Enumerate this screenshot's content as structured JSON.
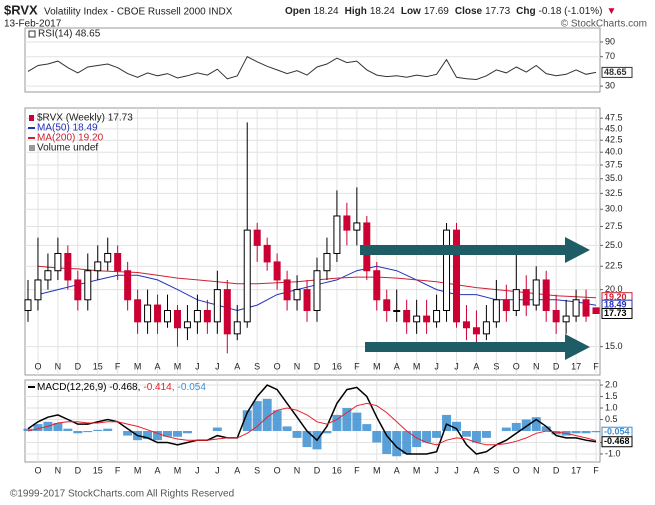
{
  "header": {
    "symbol": "$RVX",
    "name": "Volatility Index - CBOE Russell 2000 INDX",
    "date": "13-Feb-2017",
    "quote": [
      {
        "label": "Open",
        "value": "18.24"
      },
      {
        "label": "High",
        "value": "18.24"
      },
      {
        "label": "Low",
        "value": "17.69"
      },
      {
        "label": "Close",
        "value": "17.73"
      },
      {
        "label": "Chg",
        "value": "-0.18 (-1.01%)"
      }
    ],
    "change_arrow": "▼",
    "source": "© StockCharts.com"
  },
  "footer": "©1999-2017 StockCharts.com All Rights Reserved",
  "chart_data": [
    {
      "type": "line",
      "title": "RSI(14) 48.65",
      "x": [
        -0.5,
        0,
        0.5,
        1,
        1.5,
        2,
        2.5,
        3,
        3.5,
        4,
        4.5,
        5,
        5.5,
        6,
        6.5,
        7,
        7.5,
        8,
        8.5,
        9,
        9.5,
        10,
        10.5,
        11,
        11.5,
        12,
        12.5,
        13,
        13.5,
        14,
        14.5,
        15,
        15.5,
        16,
        16.5,
        17,
        17.5,
        18,
        18.5,
        19,
        19.5,
        20,
        20.5,
        21,
        21.5,
        22,
        22.5,
        23,
        23.5,
        24,
        24.5,
        25,
        25.5,
        26,
        26.5,
        27,
        27.5,
        28
      ],
      "series": [
        {
          "color": "#333333",
          "values": [
            50,
            58,
            60,
            64,
            55,
            48,
            56,
            58,
            60,
            55,
            47,
            42,
            48,
            44,
            47,
            41,
            44,
            48,
            45,
            53,
            40,
            44,
            70,
            63,
            57,
            52,
            47,
            51,
            45,
            56,
            60,
            68,
            62,
            64,
            52,
            45,
            43,
            44,
            42,
            45,
            43,
            46,
            66,
            42,
            40,
            39,
            44,
            52,
            48,
            56,
            49,
            58,
            47,
            44,
            46,
            52,
            46,
            48.65
          ]
        }
      ],
      "xlim": [
        -0.65,
        28.2
      ],
      "ylim": [
        22,
        109
      ],
      "yticks": [
        30,
        70,
        90
      ],
      "grid": true,
      "tags": [
        {
          "value": 48.65,
          "label": "48.65",
          "color": "#333333"
        }
      ]
    },
    {
      "type": "candlestick",
      "name": "$RVX (Weekly) 17.73",
      "log_scale": true,
      "grid": true,
      "up_color": "#000000",
      "down_color": "#cc0033",
      "x": [
        -0.5,
        0,
        0.5,
        1,
        1.5,
        2,
        2.5,
        3,
        3.5,
        4,
        4.5,
        5,
        5.5,
        6,
        6.5,
        7,
        7.5,
        8,
        8.5,
        9,
        9.5,
        10,
        10.5,
        11,
        11.5,
        12,
        12.5,
        13,
        13.5,
        14,
        14.5,
        15,
        15.5,
        16,
        16.5,
        17,
        17.5,
        18,
        18.5,
        19,
        19.5,
        20,
        20.5,
        21,
        21.5,
        22,
        22.5,
        23,
        23.5,
        24,
        24.5,
        25,
        25.5,
        26,
        26.5,
        27,
        27.5,
        28
      ],
      "open": [
        18,
        19,
        21,
        22,
        24,
        21,
        19,
        22,
        23,
        24,
        22,
        19,
        17,
        18.5,
        17,
        18,
        16.5,
        17,
        18,
        17,
        20,
        16,
        17,
        27,
        25,
        23,
        21,
        19,
        20,
        18,
        22,
        24,
        29,
        27,
        28,
        22,
        19,
        18,
        18,
        17,
        17.5,
        17,
        18,
        27,
        17,
        16.5,
        16,
        17,
        19,
        18,
        20,
        18.5,
        21,
        18,
        17,
        17.5,
        19,
        18.24
      ],
      "high": [
        21,
        26,
        24,
        26,
        25,
        22,
        24,
        25,
        26,
        25,
        23,
        20,
        20,
        19.5,
        19.5,
        18.5,
        18.5,
        19.5,
        19,
        22,
        21,
        18.5,
        46.5,
        28,
        26,
        24,
        22,
        21.5,
        21,
        23.5,
        26,
        33,
        31,
        33.5,
        29,
        23,
        20,
        20,
        19,
        19,
        19,
        19.5,
        28,
        28,
        18.5,
        18,
        18.5,
        21,
        20.5,
        25,
        21.5,
        22.5,
        22,
        19.5,
        19,
        20,
        20,
        18.24
      ],
      "low": [
        17,
        18,
        20,
        21,
        20,
        18,
        18,
        21,
        22,
        21,
        18,
        16,
        16,
        16,
        16.5,
        15,
        15.5,
        16,
        16,
        16,
        14.5,
        15.5,
        16.5,
        23,
        22,
        20,
        18,
        18,
        17,
        17,
        21,
        23,
        25,
        25,
        21,
        18,
        17,
        17,
        16,
        16,
        16,
        16.5,
        17,
        16.5,
        15.5,
        15,
        15.5,
        16.5,
        17,
        17.5,
        17.5,
        18,
        17,
        16,
        16,
        17,
        17,
        17.69
      ],
      "close": [
        19,
        21,
        22,
        24,
        21,
        19,
        22,
        23,
        24,
        22,
        19,
        17,
        18.5,
        17,
        18,
        16.5,
        17,
        18,
        17,
        20,
        16,
        17,
        27,
        25,
        23,
        21,
        19,
        20,
        18,
        22,
        24,
        29,
        27,
        28,
        22,
        19,
        18,
        18,
        17,
        17.5,
        17,
        18,
        27,
        17,
        16.5,
        16,
        17,
        19,
        18,
        20,
        18.5,
        21,
        18,
        17,
        17.5,
        19,
        17.5,
        17.73
      ],
      "overlays": [
        {
          "name": "MA(50) 18.49",
          "color": "#2233bb",
          "x": [
            0,
            1,
            2,
            3,
            4,
            5,
            6,
            7,
            8,
            9,
            10,
            11,
            12,
            13,
            14,
            15,
            16,
            17,
            18,
            19,
            20,
            21,
            22,
            23,
            24,
            25,
            26,
            27,
            28
          ],
          "values": [
            19.5,
            20,
            20.5,
            21,
            21.5,
            21.5,
            21,
            20,
            19,
            18.5,
            18,
            18.5,
            19.5,
            20,
            20.5,
            21,
            22,
            22.5,
            22,
            21,
            20,
            19.5,
            19.5,
            19,
            19,
            19,
            19,
            18.8,
            18.49
          ]
        },
        {
          "name": "MA(200) 19.20",
          "color": "#cc2233",
          "x": [
            0,
            1,
            2,
            3,
            4,
            5,
            6,
            7,
            8,
            9,
            10,
            11,
            12,
            13,
            14,
            15,
            16,
            17,
            18,
            19,
            20,
            21,
            22,
            23,
            24,
            25,
            26,
            27,
            28
          ],
          "values": [
            22.5,
            22.3,
            22.2,
            22,
            21.9,
            21.8,
            21.5,
            21.2,
            21,
            20.8,
            20.6,
            20.6,
            20.7,
            20.8,
            21,
            21.2,
            21.3,
            21.3,
            21.2,
            21,
            20.8,
            20.5,
            20.2,
            20,
            19.8,
            19.6,
            19.4,
            19.3,
            19.2
          ]
        }
      ],
      "legend_extra": [
        "Volume undef"
      ],
      "xlim": [
        -0.65,
        28.2
      ],
      "ylim": [
        13,
        50
      ],
      "yticks": [
        47.5,
        {
          "value": 45,
          "label": "45.0"
        },
        42.5,
        {
          "value": 40,
          "label": "40.0"
        },
        37.5,
        {
          "value": 35,
          "label": "35.0"
        },
        32.5,
        {
          "value": 30,
          "label": "30.0"
        },
        27.5,
        {
          "value": 25,
          "label": "25.0"
        },
        22.5,
        {
          "value": 20,
          "label": "20.0"
        },
        {
          "value": 15,
          "label": "15.0"
        }
      ],
      "xticks": [
        {
          "value": 0,
          "label": "O"
        },
        {
          "value": 1,
          "label": "N"
        },
        {
          "value": 2,
          "label": "D"
        },
        {
          "value": 3,
          "label": "15"
        },
        {
          "value": 4,
          "label": "F"
        },
        {
          "value": 5,
          "label": "M"
        },
        {
          "value": 6,
          "label": "A"
        },
        {
          "value": 7,
          "label": "M"
        },
        {
          "value": 8,
          "label": "J"
        },
        {
          "value": 9,
          "label": "J"
        },
        {
          "value": 10,
          "label": "A"
        },
        {
          "value": 11,
          "label": "S"
        },
        {
          "value": 12,
          "label": "O"
        },
        {
          "value": 13,
          "label": "N"
        },
        {
          "value": 14,
          "label": "D"
        },
        {
          "value": 15,
          "label": "16"
        },
        {
          "value": 16,
          "label": "F"
        },
        {
          "value": 17,
          "label": "M"
        },
        {
          "value": 18,
          "label": "A"
        },
        {
          "value": 19,
          "label": "M"
        },
        {
          "value": 20,
          "label": "J"
        },
        {
          "value": 21,
          "label": "J"
        },
        {
          "value": 22,
          "label": "A"
        },
        {
          "value": 23,
          "label": "S"
        },
        {
          "value": 24,
          "label": "O"
        },
        {
          "value": 25,
          "label": "N"
        },
        {
          "value": 26,
          "label": "D"
        },
        {
          "value": 27,
          "label": "17"
        },
        {
          "value": 28,
          "label": "F"
        }
      ],
      "tags": [
        {
          "value": 19.2,
          "label": "19.20",
          "color": "#cc2233"
        },
        {
          "value": 18.49,
          "label": "18.49",
          "color": "#2233bb"
        },
        {
          "value": 17.73,
          "label": "17.73",
          "color": "#000000"
        }
      ]
    },
    {
      "type": "macd",
      "grid": true,
      "x": [
        -0.5,
        0,
        0.5,
        1,
        1.5,
        2,
        2.5,
        3,
        3.5,
        4,
        4.5,
        5,
        5.5,
        6,
        6.5,
        7,
        7.5,
        8,
        8.5,
        9,
        9.5,
        10,
        10.5,
        11,
        11.5,
        12,
        12.5,
        13,
        13.5,
        14,
        14.5,
        15,
        15.5,
        16,
        16.5,
        17,
        17.5,
        18,
        18.5,
        19,
        19.5,
        20,
        20.5,
        21,
        21.5,
        22,
        22.5,
        23,
        23.5,
        24,
        24.5,
        25,
        25.5,
        26,
        26.5,
        27,
        27.5,
        28
      ],
      "series": [
        {
          "name": "MACD(12,26,9) -0.468,",
          "color": "#000000",
          "style": "line",
          "values": [
            0.1,
            0.4,
            0.6,
            0.7,
            0.5,
            0.3,
            0.3,
            0.4,
            0.5,
            0.4,
            0.1,
            -0.2,
            -0.3,
            -0.5,
            -0.5,
            -0.6,
            -0.5,
            -0.4,
            -0.4,
            -0.2,
            -0.3,
            -0.3,
            0.8,
            1.5,
            2.0,
            1.8,
            1.2,
            0.6,
            0.0,
            -0.4,
            0.2,
            1.2,
            1.8,
            1.9,
            1.5,
            0.6,
            -0.2,
            -0.7,
            -1.0,
            -1.0,
            -1.0,
            -0.9,
            0.3,
            0.1,
            -0.6,
            -1.0,
            -0.9,
            -0.6,
            -0.4,
            -0.1,
            0.2,
            0.5,
            0.2,
            -0.2,
            -0.3,
            -0.3,
            -0.4,
            -0.468
          ]
        },
        {
          "name": "-0.414,",
          "color": "#e8202a",
          "style": "line",
          "values": [
            0.0,
            0.1,
            0.2,
            0.35,
            0.4,
            0.4,
            0.35,
            0.35,
            0.4,
            0.4,
            0.3,
            0.2,
            0.05,
            -0.1,
            -0.25,
            -0.35,
            -0.4,
            -0.4,
            -0.4,
            -0.35,
            -0.3,
            -0.3,
            -0.1,
            0.2,
            0.6,
            0.9,
            1.0,
            0.9,
            0.7,
            0.4,
            0.3,
            0.5,
            0.8,
            1.1,
            1.2,
            1.1,
            0.8,
            0.4,
            0.0,
            -0.3,
            -0.5,
            -0.6,
            -0.4,
            -0.3,
            -0.35,
            -0.5,
            -0.6,
            -0.6,
            -0.55,
            -0.45,
            -0.3,
            -0.1,
            0.0,
            -0.05,
            -0.1,
            -0.2,
            -0.3,
            -0.414
          ]
        },
        {
          "name": "-0.054",
          "color": "#3d8fd1",
          "style": "histogram",
          "values": [
            0.1,
            0.3,
            0.4,
            0.35,
            0.1,
            -0.1,
            -0.05,
            0.05,
            0.1,
            0,
            -0.2,
            -0.4,
            -0.35,
            -0.4,
            -0.25,
            -0.25,
            -0.1,
            0,
            0,
            0.15,
            0,
            0,
            0.9,
            1.3,
            1.4,
            0.9,
            0.2,
            -0.3,
            -0.7,
            -0.8,
            -0.1,
            0.7,
            1.0,
            0.8,
            0.3,
            -0.5,
            -1.0,
            -1.1,
            -1.0,
            -0.7,
            -0.5,
            -0.3,
            0.7,
            0.4,
            -0.25,
            -0.5,
            -0.3,
            0,
            0.15,
            0.35,
            0.5,
            0.6,
            0.2,
            -0.15,
            -0.2,
            -0.1,
            -0.1,
            -0.054
          ]
        }
      ],
      "xlim": [
        -0.65,
        28.2
      ],
      "ylim": [
        -1.35,
        2.22
      ],
      "yticks": [
        {
          "value": 2,
          "label": "2.0"
        },
        1.5,
        {
          "value": 1,
          "label": "1.0"
        },
        0.5,
        -0.5,
        {
          "value": -1,
          "label": "-1.0"
        }
      ],
      "xticks": [
        {
          "value": 0,
          "label": "O"
        },
        {
          "value": 1,
          "label": "N"
        },
        {
          "value": 2,
          "label": "D"
        },
        {
          "value": 3,
          "label": "15"
        },
        {
          "value": 4,
          "label": "F"
        },
        {
          "value": 5,
          "label": "M"
        },
        {
          "value": 6,
          "label": "A"
        },
        {
          "value": 7,
          "label": "M"
        },
        {
          "value": 8,
          "label": "J"
        },
        {
          "value": 9,
          "label": "J"
        },
        {
          "value": 10,
          "label": "A"
        },
        {
          "value": 11,
          "label": "S"
        },
        {
          "value": 12,
          "label": "O"
        },
        {
          "value": 13,
          "label": "N"
        },
        {
          "value": 14,
          "label": "D"
        },
        {
          "value": 15,
          "label": "16"
        },
        {
          "value": 16,
          "label": "F"
        },
        {
          "value": 17,
          "label": "M"
        },
        {
          "value": 18,
          "label": "A"
        },
        {
          "value": 19,
          "label": "M"
        },
        {
          "value": 20,
          "label": "J"
        },
        {
          "value": 21,
          "label": "J"
        },
        {
          "value": 22,
          "label": "A"
        },
        {
          "value": 23,
          "label": "S"
        },
        {
          "value": 24,
          "label": "O"
        },
        {
          "value": 25,
          "label": "N"
        },
        {
          "value": 26,
          "label": "D"
        },
        {
          "value": 27,
          "label": "17"
        },
        {
          "value": 28,
          "label": "F"
        }
      ],
      "tags": [
        {
          "value": -0.054,
          "label": "-0.054",
          "color": "#3d8fd1"
        },
        {
          "value": -0.468,
          "label": "-0.468",
          "color": "#000000"
        }
      ]
    }
  ]
}
